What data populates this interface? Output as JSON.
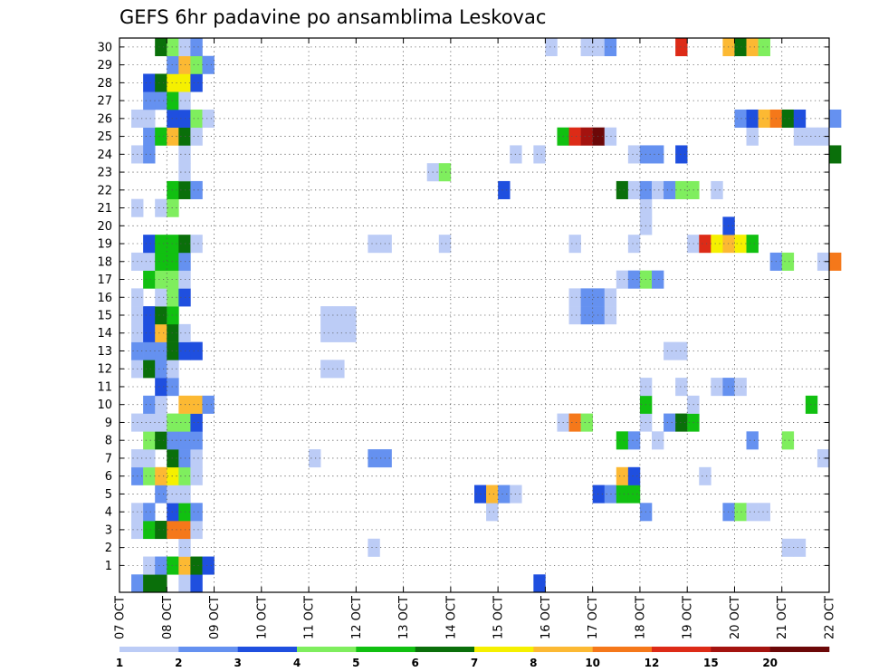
{
  "chart_data": {
    "type": "heatmap",
    "title": "GEFS 6hr padavine po ansamblima Leskovac",
    "xlabel": "",
    "ylabel": "",
    "x_start_hours": 0,
    "x_end_hours": 360,
    "step_hours": 6,
    "y_members": [
      0,
      30
    ],
    "ytick_labels": [
      "1",
      "2",
      "3",
      "4",
      "5",
      "6",
      "7",
      "8",
      "9",
      "10",
      "11",
      "12",
      "13",
      "14",
      "15",
      "16",
      "17",
      "18",
      "19",
      "20",
      "21",
      "22",
      "23",
      "24",
      "25",
      "26",
      "27",
      "28",
      "29",
      "30"
    ],
    "xtick_labels": [
      "07 OCT",
      "08 OCT",
      "09 OCT",
      "10 OCT",
      "11 OCT",
      "12 OCT",
      "13 OCT",
      "14 OCT",
      "15 OCT",
      "16 OCT",
      "17 OCT",
      "18 OCT",
      "19 OCT",
      "20 OCT",
      "21 OCT",
      "22 OCT"
    ],
    "legend": {
      "colors": [
        "#bcccf6",
        "#6591f0",
        "#1f4fdf",
        "#7fee5e",
        "#11c011",
        "#0a6f0a",
        "#f5f000",
        "#fcb933",
        "#f5781a",
        "#dd2b17",
        "#a4130f",
        "#6c0808"
      ],
      "labels": [
        "1",
        "2",
        "3",
        "4",
        "5",
        "6",
        "7",
        "8",
        "10",
        "12",
        "15",
        "20"
      ]
    },
    "cells": [
      [
        0,
        1,
        1
      ],
      [
        0,
        2,
        5
      ],
      [
        0,
        3,
        5
      ],
      [
        0,
        5,
        0
      ],
      [
        0,
        6,
        2
      ],
      [
        0,
        35,
        2
      ],
      [
        1,
        2,
        0
      ],
      [
        1,
        3,
        1
      ],
      [
        1,
        4,
        4
      ],
      [
        1,
        5,
        7
      ],
      [
        1,
        6,
        5
      ],
      [
        1,
        7,
        2
      ],
      [
        2,
        5,
        0
      ],
      [
        2,
        21,
        0
      ],
      [
        2,
        56,
        0
      ],
      [
        2,
        57,
        0
      ],
      [
        3,
        1,
        0
      ],
      [
        3,
        2,
        4
      ],
      [
        3,
        3,
        5
      ],
      [
        3,
        4,
        8
      ],
      [
        3,
        5,
        8
      ],
      [
        3,
        6,
        0
      ],
      [
        4,
        1,
        0
      ],
      [
        4,
        2,
        1
      ],
      [
        4,
        4,
        2
      ],
      [
        4,
        5,
        4
      ],
      [
        4,
        6,
        1
      ],
      [
        4,
        31,
        0
      ],
      [
        4,
        44,
        1
      ],
      [
        4,
        51,
        1
      ],
      [
        4,
        52,
        3
      ],
      [
        4,
        53,
        0
      ],
      [
        4,
        54,
        0
      ],
      [
        5,
        3,
        1
      ],
      [
        5,
        4,
        0
      ],
      [
        5,
        5,
        0
      ],
      [
        5,
        30,
        2
      ],
      [
        5,
        31,
        7
      ],
      [
        5,
        32,
        1
      ],
      [
        5,
        33,
        0
      ],
      [
        5,
        40,
        2
      ],
      [
        5,
        41,
        1
      ],
      [
        5,
        42,
        4
      ],
      [
        5,
        43,
        4
      ],
      [
        6,
        1,
        1
      ],
      [
        6,
        2,
        3
      ],
      [
        6,
        3,
        7
      ],
      [
        6,
        4,
        6
      ],
      [
        6,
        5,
        3
      ],
      [
        6,
        6,
        0
      ],
      [
        6,
        42,
        7
      ],
      [
        6,
        43,
        2
      ],
      [
        6,
        49,
        0
      ],
      [
        7,
        1,
        0
      ],
      [
        7,
        2,
        0
      ],
      [
        7,
        4,
        5
      ],
      [
        7,
        5,
        1
      ],
      [
        7,
        6,
        0
      ],
      [
        7,
        16,
        0
      ],
      [
        7,
        21,
        1
      ],
      [
        7,
        22,
        1
      ],
      [
        7,
        59,
        0
      ],
      [
        8,
        2,
        3
      ],
      [
        8,
        3,
        5
      ],
      [
        8,
        4,
        1
      ],
      [
        8,
        5,
        1
      ],
      [
        8,
        6,
        1
      ],
      [
        8,
        42,
        4
      ],
      [
        8,
        43,
        1
      ],
      [
        8,
        45,
        0
      ],
      [
        8,
        53,
        1
      ],
      [
        8,
        56,
        3
      ],
      [
        9,
        1,
        0
      ],
      [
        9,
        2,
        0
      ],
      [
        9,
        3,
        0
      ],
      [
        9,
        4,
        3
      ],
      [
        9,
        5,
        3
      ],
      [
        9,
        6,
        2
      ],
      [
        9,
        37,
        0
      ],
      [
        9,
        38,
        8
      ],
      [
        9,
        39,
        3
      ],
      [
        9,
        44,
        0
      ],
      [
        9,
        46,
        1
      ],
      [
        9,
        47,
        5
      ],
      [
        9,
        48,
        4
      ],
      [
        10,
        2,
        1
      ],
      [
        10,
        3,
        0
      ],
      [
        10,
        5,
        7
      ],
      [
        10,
        6,
        7
      ],
      [
        10,
        7,
        1
      ],
      [
        10,
        44,
        4
      ],
      [
        10,
        48,
        0
      ],
      [
        10,
        58,
        4
      ],
      [
        11,
        3,
        2
      ],
      [
        11,
        4,
        1
      ],
      [
        11,
        44,
        0
      ],
      [
        11,
        47,
        0
      ],
      [
        11,
        50,
        0
      ],
      [
        11,
        51,
        1
      ],
      [
        11,
        52,
        0
      ],
      [
        12,
        1,
        0
      ],
      [
        12,
        2,
        5
      ],
      [
        12,
        3,
        1
      ],
      [
        12,
        4,
        0
      ],
      [
        12,
        17,
        0
      ],
      [
        12,
        18,
        0
      ],
      [
        13,
        1,
        1
      ],
      [
        13,
        2,
        1
      ],
      [
        13,
        3,
        1
      ],
      [
        13,
        4,
        5
      ],
      [
        13,
        5,
        2
      ],
      [
        13,
        6,
        2
      ],
      [
        13,
        46,
        0
      ],
      [
        13,
        47,
        0
      ],
      [
        14,
        1,
        0
      ],
      [
        14,
        2,
        2
      ],
      [
        14,
        3,
        7
      ],
      [
        14,
        4,
        5
      ],
      [
        14,
        5,
        0
      ],
      [
        14,
        17,
        0
      ],
      [
        14,
        18,
        0
      ],
      [
        14,
        19,
        0
      ],
      [
        15,
        1,
        0
      ],
      [
        15,
        2,
        2
      ],
      [
        15,
        3,
        5
      ],
      [
        15,
        4,
        4
      ],
      [
        15,
        17,
        0
      ],
      [
        15,
        18,
        0
      ],
      [
        15,
        19,
        0
      ],
      [
        15,
        38,
        0
      ],
      [
        15,
        39,
        1
      ],
      [
        15,
        40,
        1
      ],
      [
        15,
        41,
        0
      ],
      [
        16,
        1,
        0
      ],
      [
        16,
        3,
        0
      ],
      [
        16,
        4,
        3
      ],
      [
        16,
        5,
        2
      ],
      [
        16,
        38,
        0
      ],
      [
        16,
        39,
        1
      ],
      [
        16,
        40,
        1
      ],
      [
        16,
        41,
        0
      ],
      [
        17,
        2,
        4
      ],
      [
        17,
        3,
        3
      ],
      [
        17,
        4,
        3
      ],
      [
        17,
        5,
        0
      ],
      [
        17,
        42,
        0
      ],
      [
        17,
        43,
        1
      ],
      [
        17,
        44,
        3
      ],
      [
        17,
        45,
        1
      ],
      [
        18,
        1,
        0
      ],
      [
        18,
        2,
        0
      ],
      [
        18,
        3,
        4
      ],
      [
        18,
        4,
        4
      ],
      [
        18,
        5,
        1
      ],
      [
        18,
        55,
        1
      ],
      [
        18,
        56,
        3
      ],
      [
        18,
        59,
        0
      ],
      [
        18,
        60,
        8
      ],
      [
        19,
        2,
        2
      ],
      [
        19,
        3,
        4
      ],
      [
        19,
        4,
        4
      ],
      [
        19,
        5,
        5
      ],
      [
        19,
        6,
        0
      ],
      [
        19,
        21,
        0
      ],
      [
        19,
        22,
        0
      ],
      [
        19,
        27,
        0
      ],
      [
        19,
        38,
        0
      ],
      [
        19,
        43,
        0
      ],
      [
        19,
        48,
        0
      ],
      [
        19,
        49,
        9
      ],
      [
        19,
        50,
        6
      ],
      [
        19,
        51,
        7
      ],
      [
        19,
        52,
        6
      ],
      [
        19,
        53,
        4
      ],
      [
        20,
        44,
        0
      ],
      [
        20,
        51,
        2
      ],
      [
        21,
        1,
        0
      ],
      [
        21,
        3,
        0
      ],
      [
        21,
        4,
        3
      ],
      [
        21,
        44,
        0
      ],
      [
        22,
        4,
        4
      ],
      [
        22,
        5,
        5
      ],
      [
        22,
        6,
        1
      ],
      [
        22,
        32,
        2
      ],
      [
        22,
        42,
        5
      ],
      [
        22,
        43,
        0
      ],
      [
        22,
        44,
        1
      ],
      [
        22,
        45,
        0
      ],
      [
        22,
        46,
        1
      ],
      [
        22,
        47,
        3
      ],
      [
        22,
        48,
        3
      ],
      [
        22,
        50,
        0
      ],
      [
        23,
        5,
        0
      ],
      [
        23,
        26,
        0
      ],
      [
        23,
        27,
        3
      ],
      [
        24,
        1,
        0
      ],
      [
        24,
        2,
        1
      ],
      [
        24,
        5,
        0
      ],
      [
        24,
        33,
        0
      ],
      [
        24,
        35,
        0
      ],
      [
        24,
        43,
        0
      ],
      [
        24,
        44,
        1
      ],
      [
        24,
        45,
        1
      ],
      [
        24,
        47,
        2
      ],
      [
        24,
        60,
        5
      ],
      [
        25,
        2,
        1
      ],
      [
        25,
        3,
        4
      ],
      [
        25,
        4,
        7
      ],
      [
        25,
        5,
        5
      ],
      [
        25,
        6,
        0
      ],
      [
        25,
        37,
        4
      ],
      [
        25,
        38,
        9
      ],
      [
        25,
        39,
        10
      ],
      [
        25,
        40,
        11
      ],
      [
        25,
        41,
        0
      ],
      [
        25,
        53,
        0
      ],
      [
        25,
        57,
        0
      ],
      [
        25,
        58,
        0
      ],
      [
        25,
        59,
        0
      ],
      [
        26,
        1,
        0
      ],
      [
        26,
        2,
        0
      ],
      [
        26,
        4,
        2
      ],
      [
        26,
        5,
        2
      ],
      [
        26,
        6,
        3
      ],
      [
        26,
        7,
        0
      ],
      [
        26,
        52,
        1
      ],
      [
        26,
        53,
        2
      ],
      [
        26,
        54,
        7
      ],
      [
        26,
        55,
        8
      ],
      [
        26,
        56,
        5
      ],
      [
        26,
        57,
        2
      ],
      [
        26,
        60,
        1
      ],
      [
        27,
        2,
        1
      ],
      [
        27,
        3,
        1
      ],
      [
        27,
        4,
        4
      ],
      [
        27,
        5,
        0
      ],
      [
        28,
        2,
        2
      ],
      [
        28,
        3,
        5
      ],
      [
        28,
        4,
        6
      ],
      [
        28,
        5,
        6
      ],
      [
        28,
        6,
        2
      ],
      [
        29,
        4,
        1
      ],
      [
        29,
        5,
        7
      ],
      [
        29,
        6,
        3
      ],
      [
        29,
        7,
        1
      ],
      [
        30,
        3,
        5
      ],
      [
        30,
        4,
        3
      ],
      [
        30,
        5,
        0
      ],
      [
        30,
        6,
        1
      ],
      [
        30,
        36,
        0
      ],
      [
        30,
        39,
        0
      ],
      [
        30,
        40,
        0
      ],
      [
        30,
        41,
        1
      ],
      [
        30,
        47,
        9
      ],
      [
        30,
        51,
        7
      ],
      [
        30,
        52,
        5
      ],
      [
        30,
        53,
        7
      ],
      [
        30,
        54,
        3
      ]
    ]
  }
}
